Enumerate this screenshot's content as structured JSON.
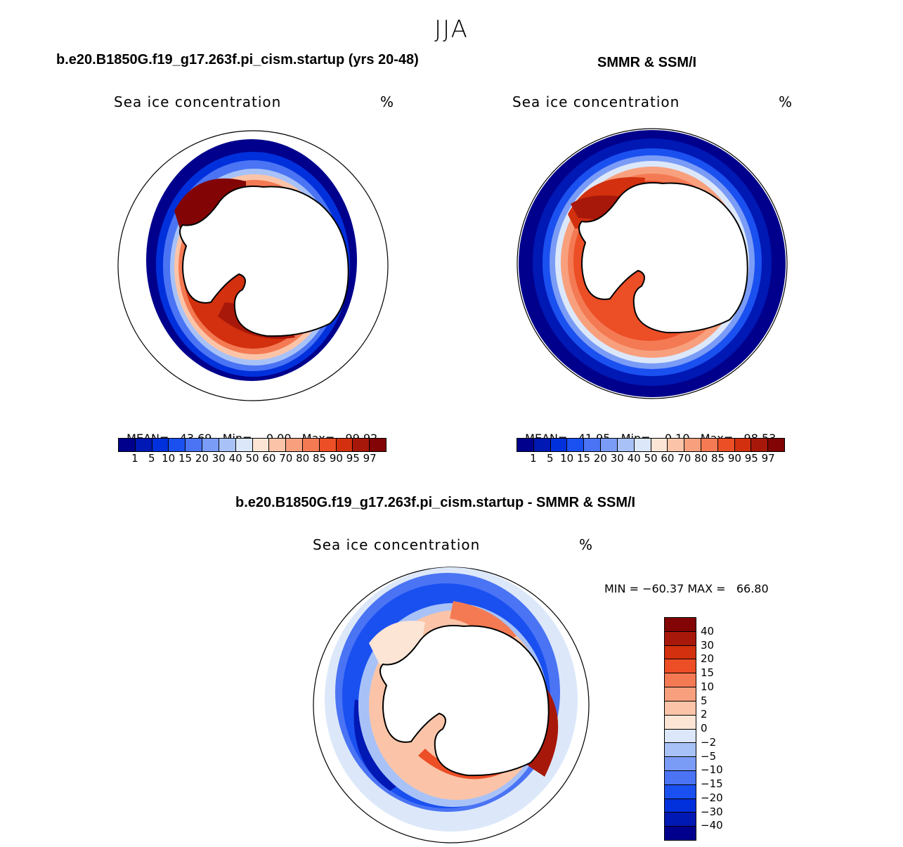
{
  "title": "JJA",
  "panels": {
    "model": {
      "title": "b.e20.B1850G.f19_g17.263f.pi_cism.startup (yrs 20-48)",
      "subtitle": "Sea ice concentration",
      "unit": "%",
      "stats": {
        "mean_label": "MEAN=",
        "mean": "43.69",
        "min_label": "Min=",
        "min": "0.00",
        "max_label": "Max=",
        "max": "99.92"
      }
    },
    "obs": {
      "title": "SMMR & SSM/I",
      "subtitle": "Sea ice concentration",
      "unit": "%",
      "stats": {
        "mean_label": "MEAN=",
        "mean": "41.95",
        "min_label": "Min=",
        "min": "0.10",
        "max_label": "Max=",
        "max": "98.53"
      }
    },
    "diff": {
      "title": "b.e20.B1850G.f19_g17.263f.pi_cism.startup - SMMR & SSM/I",
      "subtitle": "Sea ice concentration",
      "unit": "%",
      "minmax": "MIN = −60.37 MAX =   66.80"
    }
  },
  "colorbar_abs": {
    "colors": [
      "#00008c",
      "#0018b4",
      "#0030dc",
      "#1a50f0",
      "#4a74f4",
      "#7a9cf6",
      "#a8c2f8",
      "#dce8fa",
      "#fde5d6",
      "#fbc4a8",
      "#f8a07e",
      "#f47a54",
      "#ec4e26",
      "#d2300e",
      "#a8180a",
      "#820404"
    ],
    "labels": [
      "1",
      "5",
      "10",
      "15",
      "20",
      "30",
      "40",
      "50",
      "60",
      "70",
      "80",
      "85",
      "90",
      "95",
      "97"
    ]
  },
  "colorbar_diff": {
    "colors": [
      "#820404",
      "#a8180a",
      "#d2300e",
      "#ec4e26",
      "#f47a54",
      "#f8a07e",
      "#fbc4a8",
      "#fde5d6",
      "#dce8fa",
      "#a8c2f8",
      "#7a9cf6",
      "#4a74f4",
      "#1a50f0",
      "#0030dc",
      "#0018b4",
      "#00008c"
    ],
    "labels": [
      "40",
      "30",
      "20",
      "15",
      "10",
      "5",
      "2",
      "0",
      "−2",
      "−5",
      "−10",
      "−15",
      "−20",
      "−30",
      "−40"
    ]
  },
  "icons": {
    "map": "south-polar-stereographic-map",
    "land": "antarctica-continent"
  }
}
